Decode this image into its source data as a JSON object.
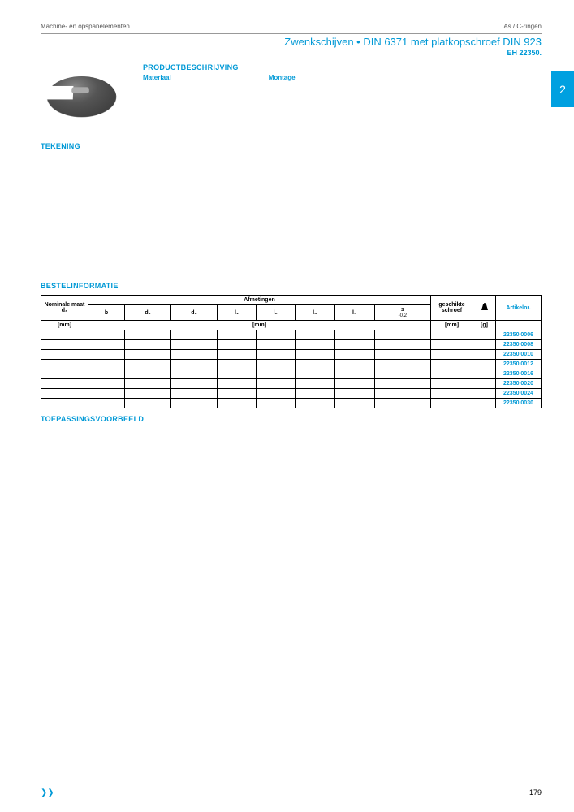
{
  "header": {
    "left": "Machine- en opspanelementen",
    "right": "As / C-ringen"
  },
  "title": "Zwenkschijven • DIN 6371 met platkopschroef DIN 923",
  "subtitle": "EH 22350.",
  "sideTab": "2",
  "sections": {
    "productDesc": "PRODUCTBESCHRIJVING",
    "material": "Materiaal",
    "montage": "Montage",
    "tekening": "TEKENING",
    "bestel": "BESTELINFORMATIE",
    "toepassing": "TOEPASSINGSVOORBEELD"
  },
  "table": {
    "headers": {
      "nominal": "Nominale maat",
      "nominalSub": "d₃",
      "afmetingen": "Afmetingen",
      "b": "b",
      "d1": "d₁",
      "d2": "d₂",
      "l1": "l₁",
      "l2": "l₂",
      "l3": "l₃",
      "l4": "l₄",
      "s": "s",
      "sTol": "-0,2",
      "schroef": "geschikte schroef",
      "artikel": "Artikelnr.",
      "mm": "[mm]",
      "g": "[g]"
    },
    "rows": [
      {
        "art": "22350.0006"
      },
      {
        "art": "22350.0008"
      },
      {
        "art": "22350.0010"
      },
      {
        "art": "22350.0012"
      },
      {
        "art": "22350.0016"
      },
      {
        "art": "22350.0020"
      },
      {
        "art": "22350.0024"
      },
      {
        "art": "22350.0030"
      }
    ]
  },
  "footer": {
    "left": "❯❯",
    "pageNum": "179"
  }
}
